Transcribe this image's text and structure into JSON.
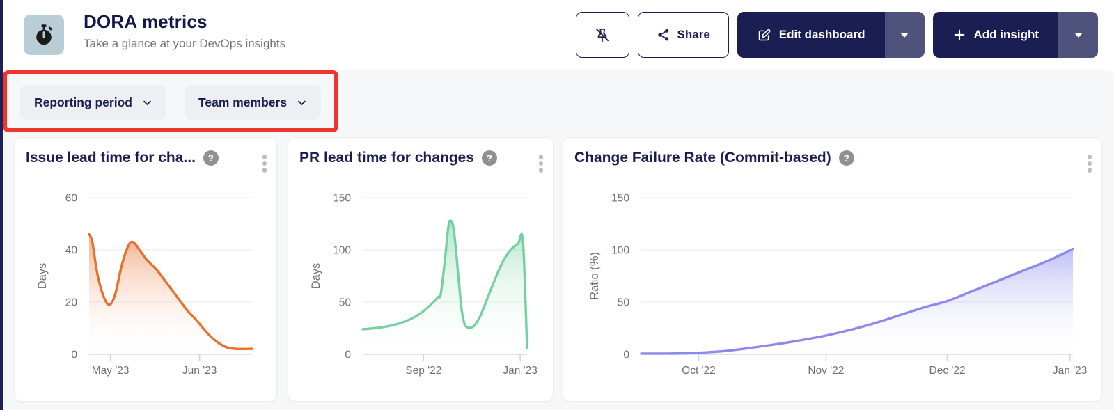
{
  "header": {
    "title": "DORA metrics",
    "subtitle": "Take a glance at your DevOps insights",
    "icon": "stopwatch-icon",
    "icon_tile_color": "#b9cdd6",
    "buttons": {
      "unpin": {
        "icon": "pin-off-icon"
      },
      "share": {
        "label": "Share",
        "icon": "share-nodes-icon"
      },
      "edit_dashboard": {
        "label": "Edit dashboard",
        "icon": "edit-pencil-icon",
        "color": "#1a1e52",
        "caret_color": "#4f537b"
      },
      "add_insight": {
        "label": "Add insight",
        "icon": "plus-icon",
        "color": "#1a1e52",
        "caret_color": "#4f537b"
      }
    }
  },
  "filters": {
    "annotation_highlight_color": "#ee352e",
    "items": [
      {
        "label": "Reporting period"
      },
      {
        "label": "Team members"
      }
    ]
  },
  "help_glyph": "?",
  "chart_data": [
    {
      "type": "area",
      "title": "Issue lead time for cha...",
      "ylabel": "Days",
      "ylim": [
        0,
        60
      ],
      "yticks": [
        0,
        20,
        40,
        60
      ],
      "grid": "horizontal",
      "legend": "none",
      "line_color": "#e8702c",
      "xticks": [
        {
          "label": "May '23",
          "pos": 0.131
        },
        {
          "label": "Jun '23",
          "pos": 0.678
        }
      ],
      "points": [
        [
          0,
          46
        ],
        [
          0.02,
          43
        ],
        [
          0.05,
          31
        ],
        [
          0.09,
          22
        ],
        [
          0.125,
          19
        ],
        [
          0.16,
          23
        ],
        [
          0.2,
          34
        ],
        [
          0.24,
          41.5
        ],
        [
          0.27,
          43
        ],
        [
          0.31,
          40
        ],
        [
          0.35,
          36.5
        ],
        [
          0.42,
          32
        ],
        [
          0.48,
          27
        ],
        [
          0.54,
          22
        ],
        [
          0.6,
          17
        ],
        [
          0.66,
          13
        ],
        [
          0.72,
          8.5
        ],
        [
          0.78,
          5
        ],
        [
          0.84,
          2.8
        ],
        [
          0.9,
          2.1
        ],
        [
          1,
          2.1
        ]
      ]
    },
    {
      "type": "area",
      "title": "PR lead time for changes",
      "ylabel": "Days",
      "ylim": [
        0,
        150
      ],
      "yticks": [
        0,
        50,
        100,
        150
      ],
      "grid": "horizontal",
      "legend": "none",
      "line_color": "#74cfa1",
      "xticks": [
        {
          "label": "Sep '22",
          "pos": 0.37
        },
        {
          "label": "Jan '23",
          "pos": 0.958
        }
      ],
      "points": [
        [
          0,
          24
        ],
        [
          0.07,
          25
        ],
        [
          0.14,
          26.5
        ],
        [
          0.21,
          29
        ],
        [
          0.28,
          33
        ],
        [
          0.34,
          38
        ],
        [
          0.39,
          44
        ],
        [
          0.43,
          50
        ],
        [
          0.46,
          55
        ],
        [
          0.475,
          58
        ],
        [
          0.5,
          90
        ],
        [
          0.52,
          121
        ],
        [
          0.535,
          128
        ],
        [
          0.555,
          118
        ],
        [
          0.58,
          78
        ],
        [
          0.6,
          45
        ],
        [
          0.62,
          29
        ],
        [
          0.645,
          25.5
        ],
        [
          0.675,
          27
        ],
        [
          0.71,
          35
        ],
        [
          0.75,
          50
        ],
        [
          0.8,
          70
        ],
        [
          0.85,
          88
        ],
        [
          0.9,
          100
        ],
        [
          0.945,
          106
        ],
        [
          0.975,
          108
        ],
        [
          1,
          6
        ]
      ]
    },
    {
      "type": "area",
      "title": "Change Failure Rate (Commit-based)",
      "ylabel": "Ratio (%)",
      "ylim": [
        0,
        150
      ],
      "yticks": [
        0,
        50,
        100,
        150
      ],
      "grid": "horizontal",
      "legend": "none",
      "line_color": "#8b89eb",
      "xticks": [
        {
          "label": "Oct '22",
          "pos": 0.133
        },
        {
          "label": "Nov '22",
          "pos": 0.428
        },
        {
          "label": "Dec '22",
          "pos": 0.709
        },
        {
          "label": "Jan '23",
          "pos": 0.993
        }
      ],
      "points": [
        [
          0,
          0.7
        ],
        [
          0.06,
          0.7
        ],
        [
          0.1,
          1
        ],
        [
          0.133,
          1.5
        ],
        [
          0.19,
          3
        ],
        [
          0.25,
          6
        ],
        [
          0.31,
          9.5
        ],
        [
          0.37,
          13.5
        ],
        [
          0.428,
          18
        ],
        [
          0.49,
          24
        ],
        [
          0.55,
          31
        ],
        [
          0.61,
          39
        ],
        [
          0.66,
          45.5
        ],
        [
          0.709,
          51
        ],
        [
          0.77,
          61
        ],
        [
          0.83,
          71
        ],
        [
          0.89,
          81
        ],
        [
          0.95,
          91
        ],
        [
          1,
          101
        ]
      ]
    }
  ]
}
